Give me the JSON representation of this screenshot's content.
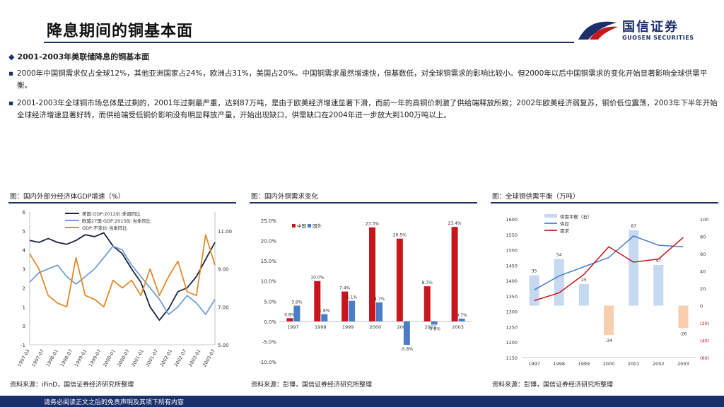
{
  "header": {
    "title": "降息期间的铜基本面",
    "logo_name": "国信证券",
    "logo_sub": "GUOSEN SECURITIES",
    "brand_color": "#1b2f6b",
    "accent_color": "#c8161d"
  },
  "section": {
    "heading": "2001-2003年美联储降息的铜基本面",
    "bullets": [
      "2000年中国铜需求仅占全球12%，其他亚洲国家占24%，欧洲占31%，美国占20%。中国铜需求虽然增速快，但基数低，对全球铜需求的影响比较小。但2000年以后中国铜需求的变化开始显著影响全球供需平衡。",
      "2001-2003年全球铜市场总体是过剩的，2001年过剩最严重，达到87万吨，是由于欧美经济增速显著下滑，而前一年的高铜价刺激了供给端释放所致；2002年欧美经济弱复苏，铜价低位震荡，2003年下半年开始全球经济增速显著好转，而供给端受低铜价影响没有明显释放产量，开始出现缺口，供需缺口在2004年进一步放大到100万吨以上。"
    ]
  },
  "panels": [
    {
      "title": "图：国内外部分经济体GDP增速（%）",
      "source": "资料来源：iFinD，国信证券经济研究所整理"
    },
    {
      "title": "图：国内外铜需求变化",
      "source": "资料来源：彭博，国信证券经济研究所整理"
    },
    {
      "title": "图：全球铜供需平衡（万吨）",
      "source": "资料来源：彭博，国信证券经济研究所整理"
    }
  ],
  "footer": {
    "text": "请务必阅读正文之后的免责声明及其项下所有内容"
  },
  "chart_data": [
    {
      "type": "line",
      "x": [
        "1997-03",
        "1997-07",
        "1997-11",
        "1998-03",
        "1998-07",
        "1998-11",
        "1999-03",
        "1999-07",
        "1999-11",
        "2000-03",
        "2000-07",
        "2000-11",
        "2001-03",
        "2001-07",
        "2001-11",
        "2002-03",
        "2002-07",
        "2002-11",
        "2003-03",
        "2003-07",
        "2003-11"
      ],
      "x_tick_labels": [
        "1997-03",
        "1997-07",
        "1998-01",
        "1998-07",
        "1999-01",
        "1999-07",
        "2000-01",
        "2000-07",
        "2001-01",
        "2001-07",
        "2002-01",
        "2002-07",
        "2003-01",
        "2003-07"
      ],
      "left_ylim": [
        -1,
        6
      ],
      "left_ticks": [
        "-1",
        "0",
        "1",
        "2",
        "3",
        "4",
        "5",
        "6"
      ],
      "right_ylim": [
        5,
        12
      ],
      "right_ticks": [
        "5.00",
        "7.00",
        "9.00",
        "11.00"
      ],
      "series": [
        {
          "name": "美国:GDP:2012价:季调同比",
          "color": "#1a2440",
          "axis": "left",
          "values": [
            4.5,
            4.4,
            4.6,
            4.4,
            4.3,
            4.5,
            4.8,
            4.7,
            4.9,
            4.2,
            3.8,
            3.0,
            2.3,
            1.0,
            0.3,
            0.9,
            1.8,
            2.0,
            2.6,
            3.5,
            4.4
          ]
        },
        {
          "name": "欧盟27国:GDP:2015价:当季同比",
          "color": "#6fa0d8",
          "axis": "left",
          "values": [
            2.3,
            2.8,
            3.0,
            3.2,
            2.6,
            2.2,
            2.6,
            3.0,
            3.6,
            4.2,
            4.0,
            3.2,
            2.6,
            2.0,
            1.4,
            0.6,
            1.0,
            1.6,
            1.2,
            0.6,
            1.4
          ]
        },
        {
          "name": "GDP:不变价:当季同比",
          "color": "#e08a2c",
          "axis": "right",
          "values": [
            9.8,
            9.0,
            7.6,
            7.2,
            7.0,
            9.6,
            7.6,
            7.4,
            7.0,
            8.4,
            8.0,
            8.4,
            7.6,
            9.0,
            7.6,
            8.6,
            9.4,
            7.8,
            7.6,
            10.8,
            9.2
          ]
        }
      ]
    },
    {
      "type": "bar",
      "categories": [
        "1997",
        "1998",
        "1999",
        "2000",
        "2001",
        "2002",
        "2003"
      ],
      "ylim": [
        -10,
        25
      ],
      "y_ticks": [
        "-10.0%",
        "-5.0%",
        "0.0%",
        "5.0%",
        "10.0%",
        "15.0%",
        "20.0%",
        "25.0%"
      ],
      "series": [
        {
          "name": "中国",
          "color": "#c8161d",
          "values": [
            0.8,
            10.0,
            7.4,
            23.3,
            20.5,
            8.7,
            23.4
          ],
          "labels": [
            "0.8%",
            "10.0%",
            "7.4%",
            "23.3%",
            "20.5%",
            "8.7%",
            "23.4%"
          ]
        },
        {
          "name": "国外",
          "color": "#4a7cc8",
          "values": [
            3.9,
            1.8,
            5.1,
            4.7,
            -5.8,
            -0.8,
            0.7
          ],
          "labels": [
            "3.9%",
            "1.8%",
            "5.1%",
            "4.7%",
            "-5.8%",
            "-0.8%",
            "0.7%"
          ]
        }
      ]
    },
    {
      "type": "bar+line",
      "categories": [
        "1997",
        "1998",
        "1999",
        "2000",
        "2001",
        "2002",
        "2003"
      ],
      "left_ylim": [
        1150,
        1600
      ],
      "left_ticks": [
        "1150",
        "1200",
        "1250",
        "1300",
        "1350",
        "1400",
        "1450",
        "1500",
        "1550",
        "1600"
      ],
      "right_ylim": [
        -60,
        100
      ],
      "right_ticks": [
        "(60)",
        "(40)",
        "(20)",
        "0",
        "20",
        "40",
        "60",
        "80",
        "100"
      ],
      "series": [
        {
          "name": "供需平衡（右）",
          "type": "bar",
          "axis": "right",
          "color": "#c6d9f0",
          "neg_color": "#f7cfae",
          "values": [
            35,
            54,
            25,
            -34,
            87,
            47,
            -26
          ],
          "labels": [
            "35",
            "54",
            "25",
            "-34",
            "87",
            "47",
            "-26"
          ]
        },
        {
          "name": "供应",
          "type": "line",
          "axis": "left",
          "color": "#4a7cc8",
          "values": [
            1370,
            1415,
            1445,
            1475,
            1545,
            1515,
            1510
          ]
        },
        {
          "name": "需求",
          "type": "line",
          "axis": "left",
          "color": "#c8161d",
          "values": [
            1335,
            1360,
            1420,
            1510,
            1460,
            1470,
            1540
          ]
        }
      ]
    }
  ]
}
